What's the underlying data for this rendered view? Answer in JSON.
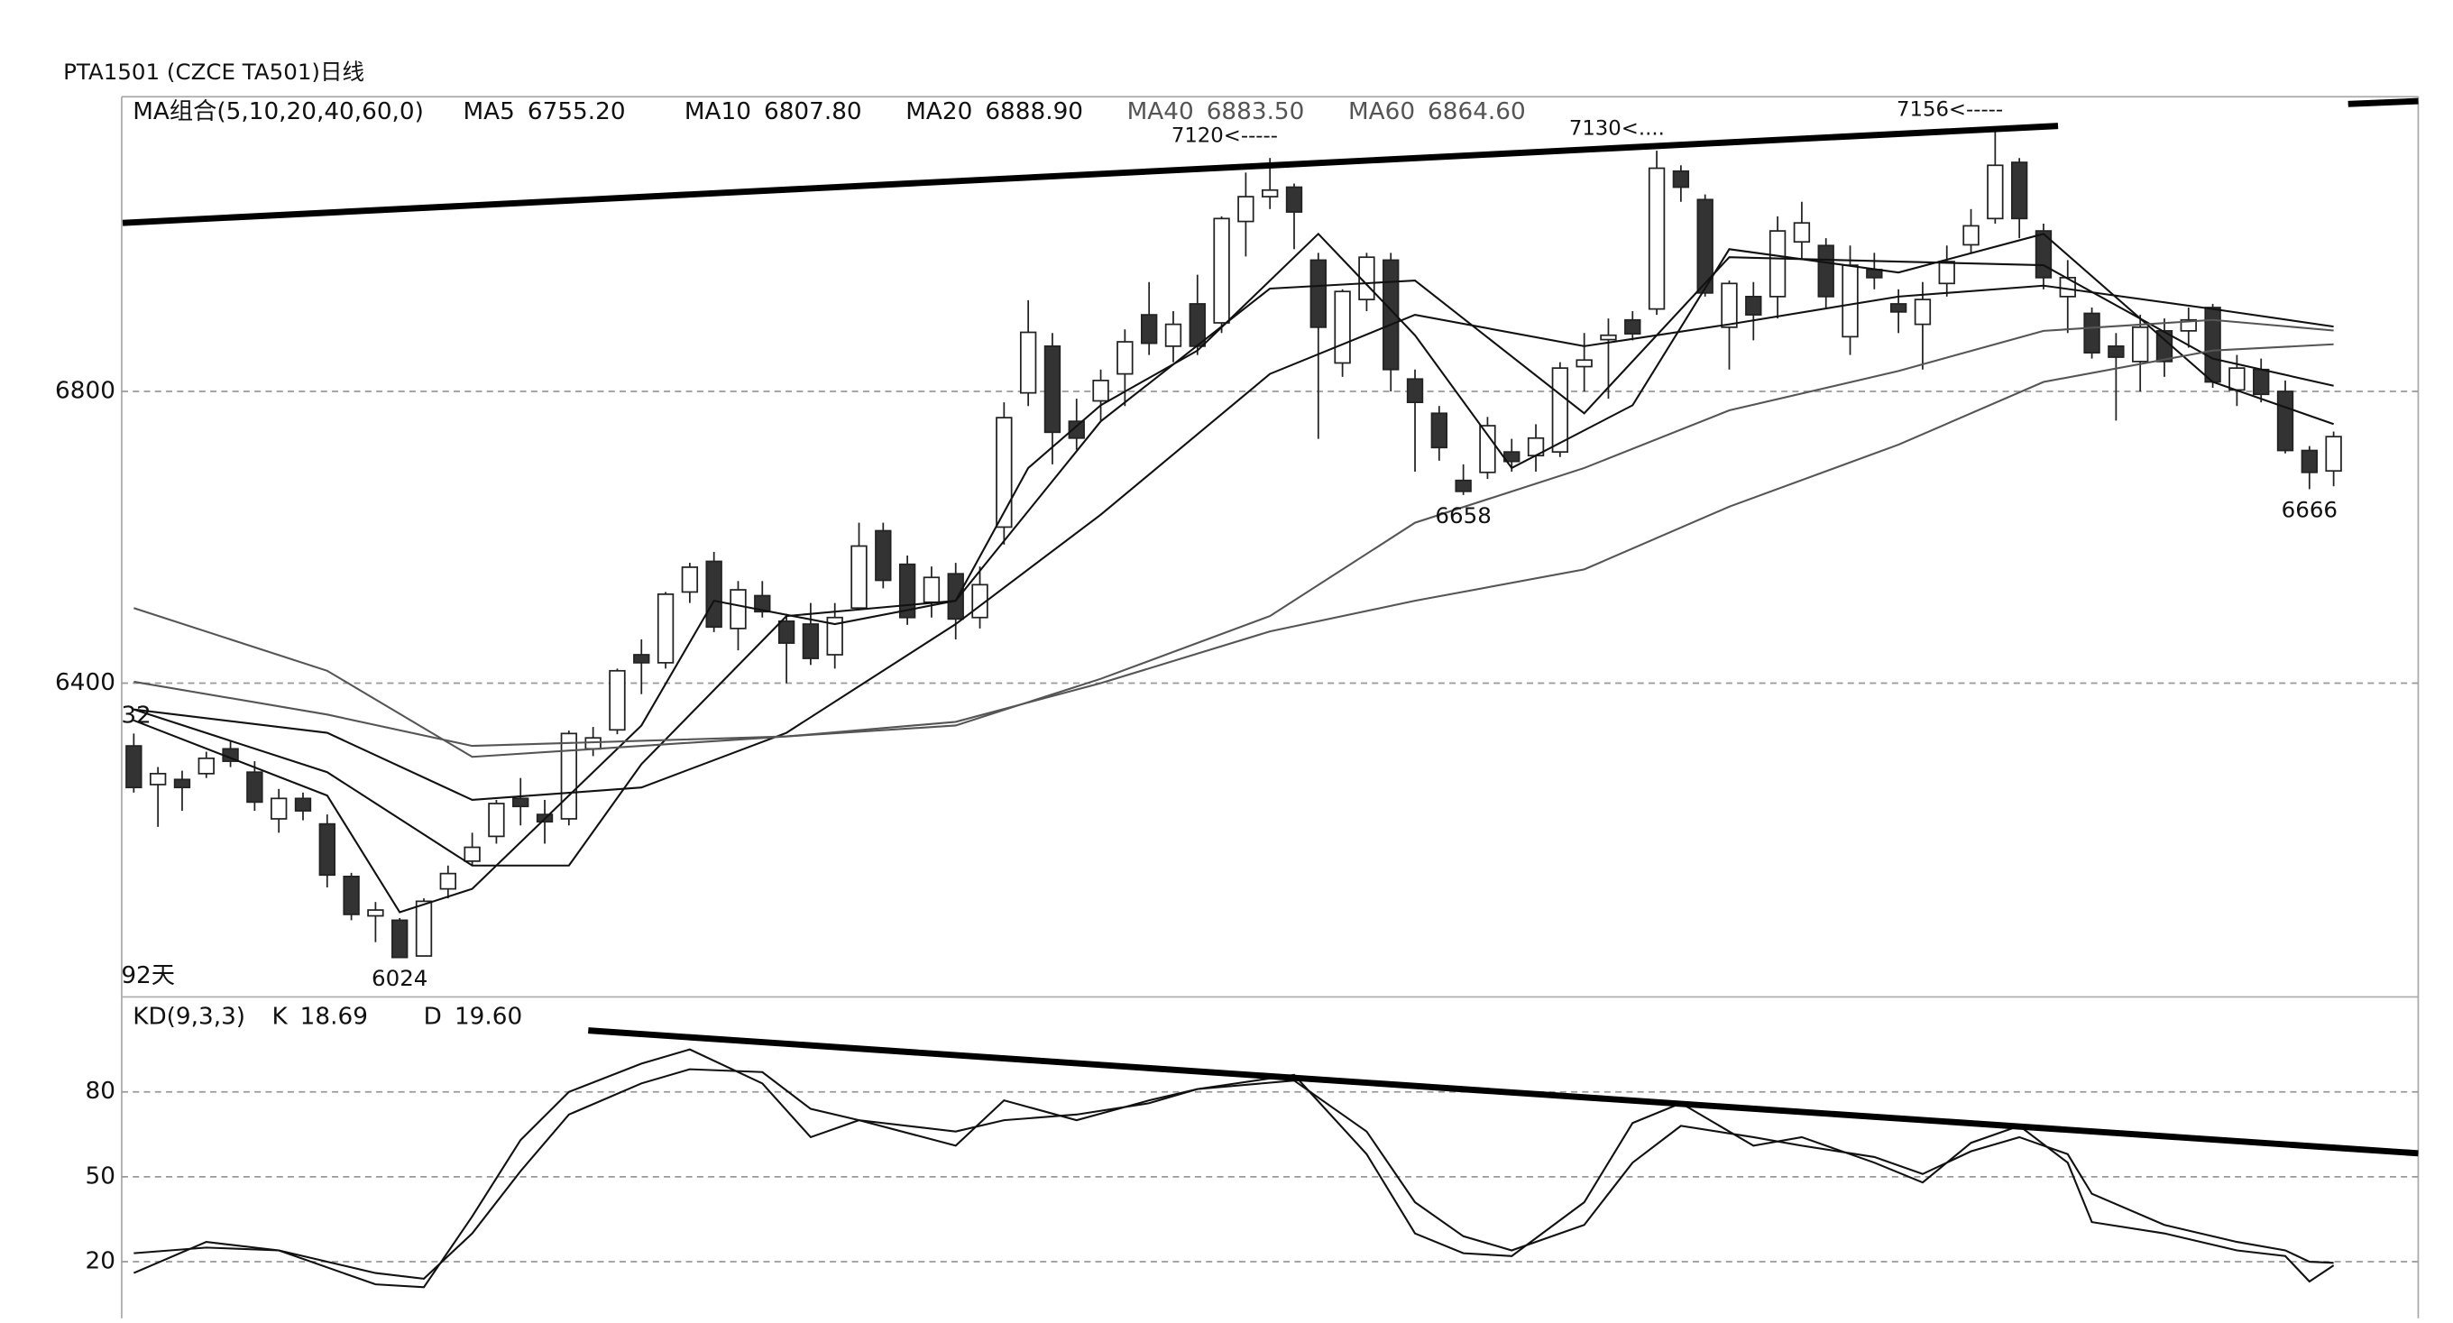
{
  "chart_data": [
    {
      "type": "candlestick",
      "title": "PTA1501 (CZCE TA501)日线",
      "legend_title": "MA组合(5,10,20,40,60,0)",
      "xlim": [
        -0.5,
        94.5
      ],
      "ylim": [
        5972,
        7204
      ],
      "yticks": [
        6400,
        6800
      ],
      "grid": true,
      "up_color": "#ffffff",
      "down_color": "#333333",
      "open": [
        6314,
        6261,
        6268,
        6276,
        6310,
        6278,
        6214,
        6242,
        6207,
        6135,
        6081,
        6075,
        6026,
        6118,
        6156,
        6190,
        6242,
        6220,
        6214,
        6310,
        6336,
        6439,
        6428,
        6525,
        6567,
        6475,
        6520,
        6485,
        6481,
        6439,
        6503,
        6609,
        6563,
        6511,
        6550,
        6490,
        6614,
        6798,
        6862,
        6759,
        6787,
        6824,
        6905,
        6862,
        6920,
        6894,
        7033,
        7067,
        7080,
        6980,
        6839,
        6926,
        6980,
        6817,
        6770,
        6678,
        6689,
        6717,
        6712,
        6717,
        6834,
        6871,
        6898,
        6913,
        7102,
        7063,
        6888,
        6930,
        6930,
        7005,
        7000,
        6875,
        6967,
        6920,
        6892,
        6948,
        7001,
        7037,
        7114,
        7020,
        6930,
        6907,
        6862,
        6841,
        6883,
        6883,
        6915,
        6802,
        6830,
        6800,
        6719,
        6691
      ],
      "high": [
        6331,
        6285,
        6280,
        6306,
        6322,
        6293,
        6255,
        6250,
        6220,
        6140,
        6100,
        6078,
        6105,
        6150,
        6195,
        6240,
        6270,
        6240,
        6335,
        6340,
        6420,
        6460,
        6525,
        6565,
        6580,
        6540,
        6540,
        6495,
        6510,
        6510,
        6620,
        6620,
        6575,
        6560,
        6565,
        6560,
        6785,
        6925,
        6880,
        6790,
        6830,
        6885,
        6950,
        6910,
        6960,
        7040,
        7100,
        7120,
        7085,
        6990,
        6940,
        6990,
        6990,
        6830,
        6780,
        6700,
        6765,
        6735,
        6755,
        6840,
        6880,
        6900,
        6910,
        7130,
        7110,
        7070,
        6952,
        6950,
        7040,
        7060,
        7010,
        7000,
        6990,
        6940,
        6950,
        7000,
        7050,
        7156,
        7120,
        7030,
        6980,
        6915,
        6880,
        6905,
        6900,
        6915,
        6920,
        6850,
        6845,
        6815,
        6725,
        6745
      ],
      "low": [
        6250,
        6203,
        6225,
        6270,
        6285,
        6225,
        6195,
        6212,
        6120,
        6075,
        6045,
        6024,
        6026,
        6105,
        6150,
        6180,
        6205,
        6180,
        6205,
        6300,
        6330,
        6385,
        6420,
        6510,
        6470,
        6445,
        6490,
        6400,
        6425,
        6420,
        6500,
        6530,
        6480,
        6490,
        6460,
        6475,
        6590,
        6780,
        6700,
        6720,
        6760,
        6780,
        6850,
        6840,
        6850,
        6880,
        6985,
        7050,
        6995,
        6735,
        6820,
        6910,
        6800,
        6690,
        6705,
        6658,
        6680,
        6690,
        6690,
        6710,
        6800,
        6790,
        6870,
        6905,
        7060,
        6930,
        6830,
        6870,
        6900,
        6980,
        6915,
        6850,
        6940,
        6880,
        6830,
        6930,
        6990,
        7030,
        7010,
        6940,
        6880,
        6845,
        6760,
        6800,
        6820,
        6860,
        6805,
        6780,
        6785,
        6715,
        6666,
        6670
      ],
      "close": [
        6257,
        6276,
        6257,
        6297,
        6293,
        6237,
        6242,
        6225,
        6137,
        6083,
        6089,
        6024,
        6101,
        6139,
        6175,
        6235,
        6231,
        6210,
        6331,
        6325,
        6417,
        6428,
        6522,
        6559,
        6477,
        6528,
        6498,
        6455,
        6434,
        6490,
        6588,
        6541,
        6490,
        6545,
        6488,
        6535,
        6764,
        6881,
        6744,
        6736,
        6815,
        6868,
        6866,
        6892,
        6862,
        7037,
        7067,
        7076,
        7046,
        6888,
        6937,
        6984,
        6830,
        6785,
        6723,
        6663,
        6753,
        6704,
        6736,
        6832,
        6843,
        6877,
        6879,
        7106,
        7080,
        6935,
        6948,
        6905,
        7020,
        7031,
        6930,
        6973,
        6956,
        6909,
        6926,
        6978,
        7027,
        7110,
        7037,
        6956,
        6956,
        6853,
        6847,
        6888,
        6841,
        6898,
        6813,
        6832,
        6796,
        6719,
        6689,
        6738
      ],
      "series": [
        {
          "name": "MA5",
          "legend_label": "6755.20",
          "color": "#111111",
          "x": [
            0,
            8,
            11,
            14,
            21,
            24,
            29,
            34,
            37,
            40,
            44,
            49,
            53,
            57,
            62,
            66,
            73,
            79,
            86,
            91
          ],
          "values": [
            6349,
            6246,
            6086,
            6118,
            6342,
            6513,
            6481,
            6513,
            6695,
            6781,
            6856,
            7016,
            6877,
            6695,
            6781,
            6995,
            6963,
            7016,
            6813,
            6755.2
          ]
        },
        {
          "name": "MA10",
          "legend_label": "6807.80",
          "color": "#111111",
          "x": [
            0,
            8,
            14,
            18,
            21,
            27,
            34,
            40,
            47,
            53,
            60,
            66,
            73,
            79,
            86,
            91
          ],
          "values": [
            6364,
            6278,
            6150,
            6150,
            6289,
            6492,
            6513,
            6759,
            6941,
            6952,
            6770,
            6984,
            6978,
            6973,
            6845,
            6807.8
          ]
        },
        {
          "name": "MA20",
          "legend_label": "6888.90",
          "color": "#111111",
          "x": [
            0,
            8,
            14,
            21,
            27,
            34,
            40,
            47,
            53,
            60,
            66,
            73,
            79,
            86,
            91
          ],
          "values": [
            6364,
            6332,
            6240,
            6257,
            6332,
            6481,
            6631,
            6824,
            6905,
            6862,
            6892,
            6930,
            6945,
            6913,
            6888.9
          ]
        },
        {
          "name": "MA40",
          "legend_label": "6883.50",
          "color": "#555555",
          "x": [
            0,
            8,
            14,
            21,
            27,
            34,
            40,
            47,
            53,
            60,
            66,
            73,
            79,
            86,
            91
          ],
          "values": [
            6402,
            6357,
            6314,
            6321,
            6327,
            6342,
            6406,
            6492,
            6620,
            6695,
            6774,
            6828,
            6883,
            6898,
            6883.5
          ]
        },
        {
          "name": "MA60",
          "legend_label": "6864.60",
          "color": "#555555",
          "x": [
            0,
            8,
            14,
            21,
            27,
            34,
            40,
            47,
            53,
            60,
            66,
            73,
            79,
            86,
            91
          ],
          "values": [
            6503,
            6417,
            6299,
            6314,
            6327,
            6347,
            6400,
            6471,
            6513,
            6556,
            6642,
            6727,
            6813,
            6856,
            6864.6
          ]
        }
      ],
      "trendlines": [
        {
          "x": [
            -0.46,
            79.6
          ],
          "y": [
            7031,
            7164
          ]
        },
        {
          "x": [
            91.6,
            94.5
          ],
          "y": [
            7194,
            7198
          ]
        }
      ],
      "annotations": [
        {
          "text": "7120<-----",
          "x": 47,
          "y": 7120
        },
        {
          "text": "7130<....",
          "x": 63,
          "y": 7130
        },
        {
          "text": "7156<-----",
          "x": 77,
          "y": 7156
        },
        {
          "text": "6658",
          "x": 55,
          "y": 6658
        },
        {
          "text": "6666",
          "x": 90,
          "y": 6666
        },
        {
          "text": "6024",
          "x": 11,
          "y": 6024
        },
        {
          "text": "92天",
          "x": 0,
          "y": 5998
        },
        {
          "text": "32",
          "x": 0,
          "y": 6355
        }
      ]
    },
    {
      "type": "line",
      "title": "KD(9,3,3)",
      "xlim": [
        -0.5,
        94.5
      ],
      "ylim": [
        0,
        113
      ],
      "yticks": [
        20,
        50,
        80
      ],
      "grid": true,
      "series": [
        {
          "name": "K",
          "legend_label": "18.69",
          "color": "#111111",
          "x": [
            0,
            3,
            6,
            10,
            12,
            14,
            16,
            18,
            21,
            23,
            26,
            28,
            30,
            34,
            36,
            39,
            42,
            44,
            48,
            51,
            53,
            55,
            57,
            60,
            62,
            64,
            67,
            69,
            72,
            74,
            76,
            78,
            80,
            81,
            84,
            87,
            89,
            90,
            91
          ],
          "values": [
            16,
            27,
            24,
            12,
            11,
            36,
            63,
            80,
            90,
            95,
            83,
            64,
            70,
            61,
            77,
            70,
            77,
            81,
            86,
            58,
            30,
            23,
            22,
            41,
            69,
            76,
            61,
            64,
            55,
            48,
            62,
            68,
            55,
            34,
            30,
            24,
            22,
            13,
            18.69
          ]
        },
        {
          "name": "D",
          "legend_label": "19.60",
          "color": "#111111",
          "x": [
            0,
            3,
            6,
            10,
            12,
            14,
            16,
            18,
            21,
            23,
            26,
            28,
            30,
            34,
            36,
            39,
            42,
            44,
            48,
            51,
            53,
            55,
            57,
            60,
            62,
            64,
            67,
            69,
            72,
            74,
            76,
            78,
            80,
            81,
            84,
            87,
            89,
            90,
            91
          ],
          "values": [
            23,
            25,
            24,
            16,
            14,
            30,
            52,
            72,
            83,
            88,
            87,
            74,
            70,
            66,
            70,
            72,
            76,
            81,
            84,
            66,
            41,
            29,
            24,
            33,
            55,
            68,
            64,
            61,
            57,
            51,
            59,
            64,
            58,
            44,
            33,
            27,
            24,
            20,
            19.6
          ]
        }
      ],
      "trendlines": [
        {
          "x": [
            18.8,
            94.5
          ],
          "y": [
            101.7,
            58.3
          ]
        }
      ]
    }
  ]
}
